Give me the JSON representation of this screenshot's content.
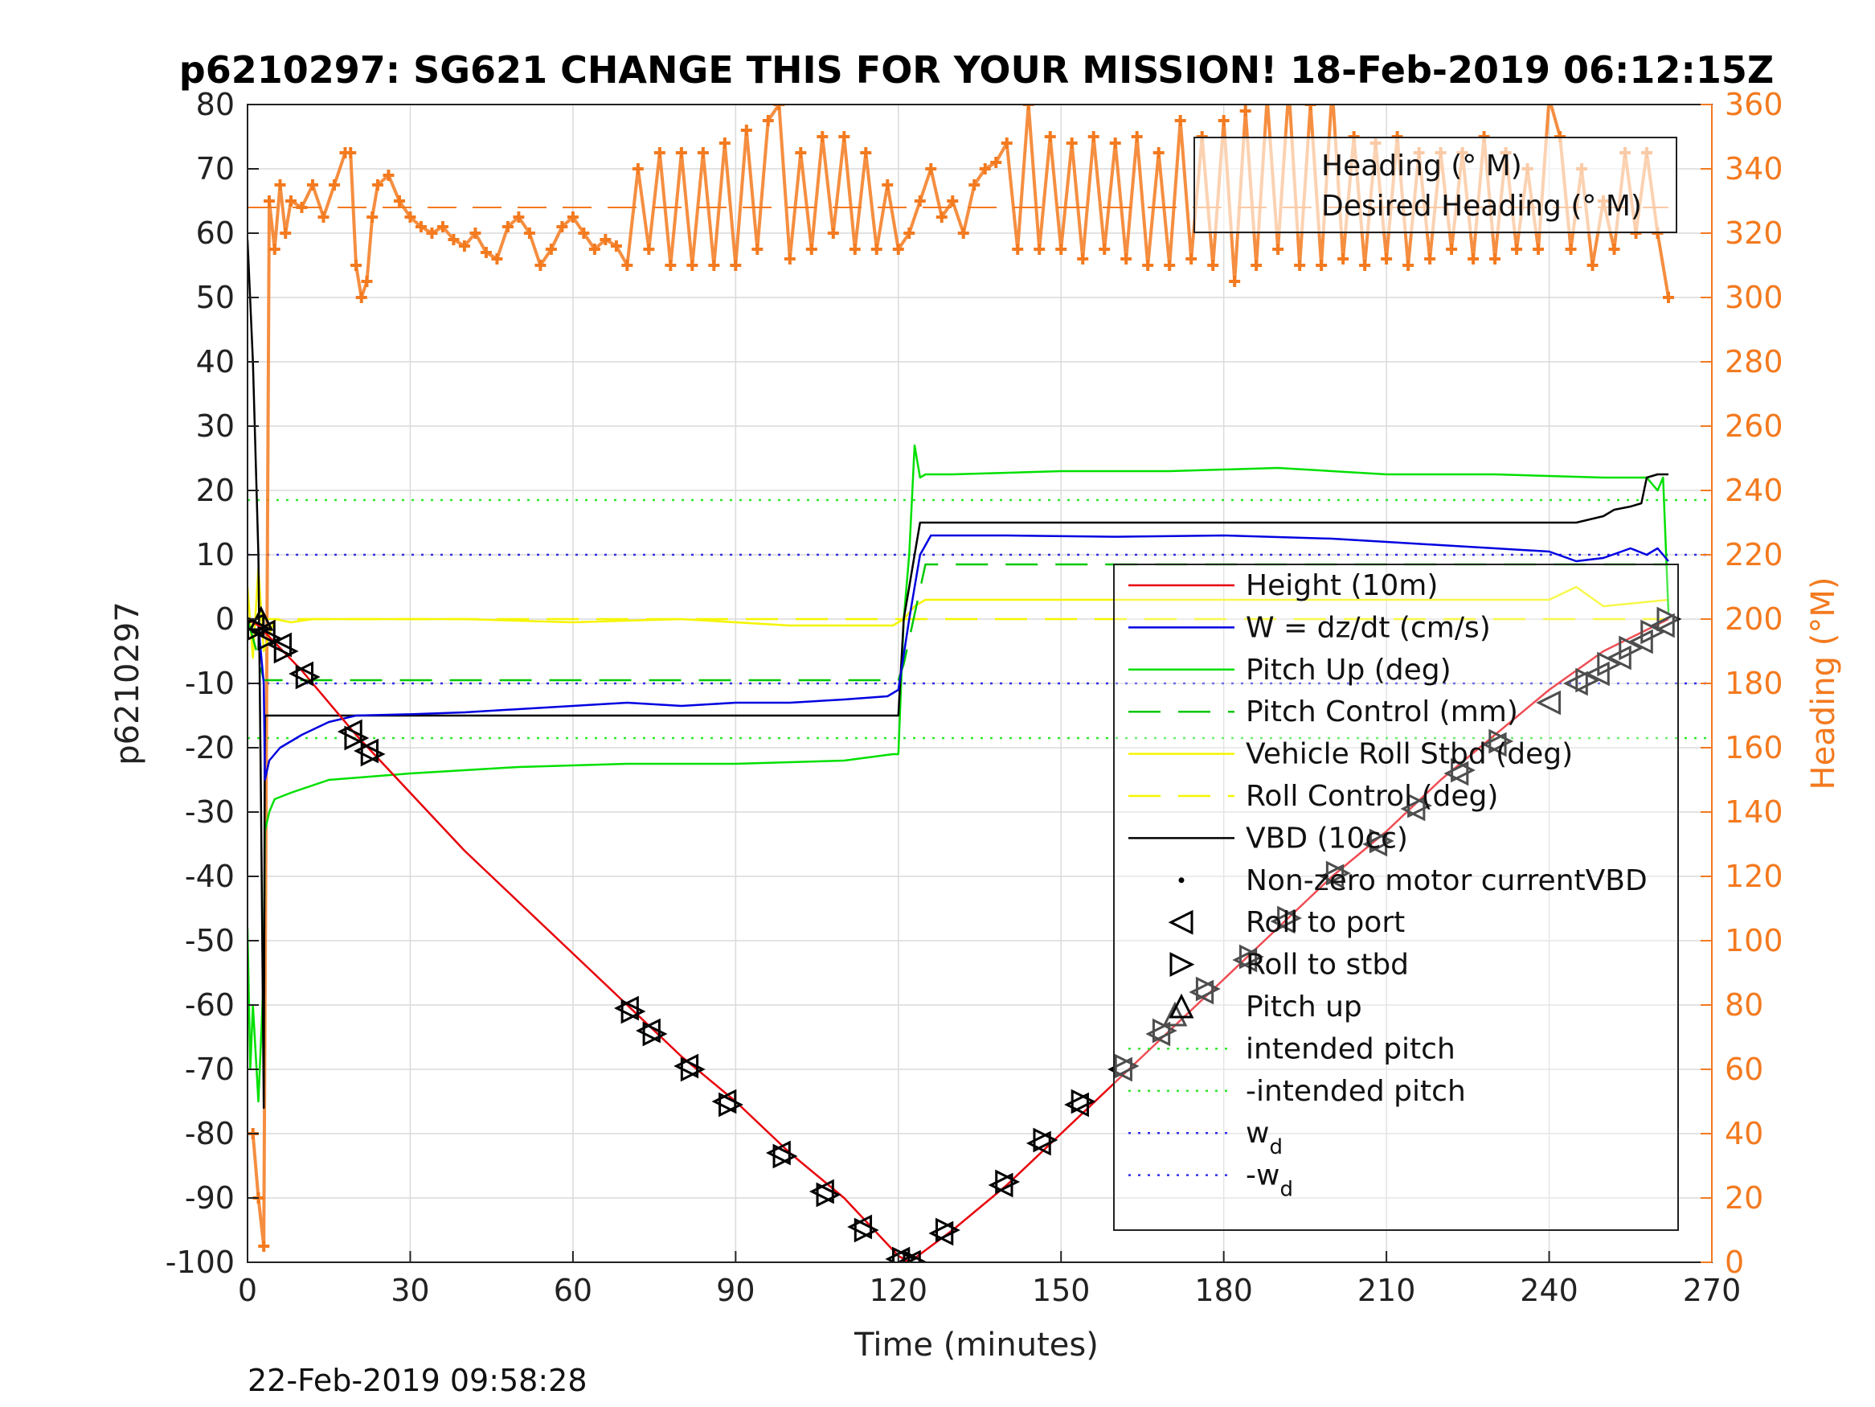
{
  "colors": {
    "height": "#E8000B",
    "w": "#0000E0",
    "pitch": "#00E000",
    "pitch_control": "#00C800",
    "roll": "#F5F500",
    "vbd": "#000000",
    "heading": "#F37A1F",
    "intended": "#2EE82E",
    "wd": "#2E2EE8",
    "grid": "#DADADA"
  },
  "chart_data": {
    "type": "line",
    "title": "p6210297: SG621 CHANGE THIS FOR YOUR MISSION! 18-Feb-2019 06:12:15Z",
    "xlabel": "Time (minutes)",
    "ylabel": "p6210297",
    "ylabel_right": "Heading (°M)",
    "xlim": [
      0,
      270
    ],
    "ylim": [
      -100,
      80
    ],
    "ylim_right": [
      0,
      360
    ],
    "xticks": [
      "0",
      "30",
      "60",
      "90",
      "120",
      "150",
      "180",
      "210",
      "240",
      "270"
    ],
    "yticks": [
      "-100",
      "-90",
      "-80",
      "-70",
      "-60",
      "-50",
      "-40",
      "-30",
      "-20",
      "-10",
      "0",
      "10",
      "20",
      "30",
      "40",
      "50",
      "60",
      "70",
      "80"
    ],
    "yticks_right": [
      "0",
      "20",
      "40",
      "60",
      "80",
      "100",
      "120",
      "140",
      "160",
      "180",
      "200",
      "220",
      "240",
      "260",
      "280",
      "300",
      "320",
      "340",
      "360"
    ],
    "grid": true,
    "footer": "22-Feb-2019 09:58:28",
    "legend_heading": {
      "placement": "top-right",
      "entries": [
        "Heading (° M)",
        "Desired Heading (° M)"
      ]
    },
    "legend_main": {
      "placement": "right",
      "entries": [
        {
          "label": "Height (10m)",
          "style": "line",
          "color": "height"
        },
        {
          "label": "W = dz/dt (cm/s)",
          "style": "line",
          "color": "w"
        },
        {
          "label": "Pitch Up (deg)",
          "style": "line",
          "color": "pitch"
        },
        {
          "label": "Pitch Control (mm)",
          "style": "dash",
          "color": "pitch_control"
        },
        {
          "label": "Vehicle Roll Stbd (deg)",
          "style": "line",
          "color": "roll"
        },
        {
          "label": "Roll Control (deg)",
          "style": "dash",
          "color": "roll"
        },
        {
          "label": "VBD (10cc)",
          "style": "line",
          "color": "vbd"
        },
        {
          "label": "Non-zero motor currentVBD",
          "style": "dot",
          "color": "vbd"
        },
        {
          "label": "Roll to port",
          "style": "tri-left",
          "color": "vbd"
        },
        {
          "label": "Roll to stbd",
          "style": "tri-right",
          "color": "vbd"
        },
        {
          "label": "Pitch up",
          "style": "tri-up",
          "color": "vbd"
        },
        {
          "label": "intended pitch",
          "style": "dotted",
          "color": "intended"
        },
        {
          "label": "-intended pitch",
          "style": "dotted",
          "color": "intended"
        },
        {
          "label": "w",
          "sub": "d",
          "style": "dotted",
          "color": "wd"
        },
        {
          "label": "-w",
          "sub": "d",
          "style": "dotted",
          "color": "wd"
        }
      ]
    },
    "reference_lines": {
      "intended_pitch": 18.5,
      "neg_intended_pitch": -18.5,
      "w_d": 10,
      "neg_w_d": -10
    },
    "series": [
      {
        "name": "Height (10m)",
        "color": "height",
        "x": [
          0,
          2,
          10,
          20,
          30,
          40,
          50,
          60,
          70,
          80,
          90,
          100,
          110,
          120,
          122,
          130,
          140,
          150,
          160,
          170,
          180,
          190,
          200,
          210,
          220,
          230,
          240,
          250,
          262
        ],
        "y": [
          0,
          -1,
          -8,
          -18,
          -27,
          -36,
          -44,
          -52,
          -60,
          -68,
          -75,
          -83,
          -90,
          -99,
          -100,
          -95,
          -88,
          -80,
          -72,
          -64,
          -56,
          -48,
          -40,
          -33,
          -25,
          -18,
          -11,
          -5,
          0
        ]
      },
      {
        "name": "W = dz/dt (cm/s)",
        "color": "w",
        "x": [
          0,
          1,
          2,
          3,
          3.2,
          4,
          6,
          10,
          15,
          20,
          30,
          40,
          50,
          60,
          70,
          80,
          90,
          100,
          110,
          118,
          120,
          122,
          124,
          126,
          130,
          140,
          160,
          180,
          200,
          210,
          220,
          230,
          240,
          245,
          250,
          255,
          258,
          260,
          262
        ],
        "y": [
          0,
          0,
          -1,
          -10,
          -25,
          -22,
          -20,
          -18,
          -16,
          -15,
          -14.8,
          -14.5,
          -14,
          -13.5,
          -13,
          -13.5,
          -13,
          -13,
          -12.5,
          -12,
          -11,
          0,
          10,
          13,
          13,
          13,
          12.8,
          13,
          12.5,
          12,
          11.5,
          11,
          10.5,
          9,
          9.5,
          11,
          10,
          11,
          9
        ]
      },
      {
        "name": "Pitch Up (deg)",
        "color": "pitch",
        "x": [
          0,
          0.5,
          1,
          2,
          2.5,
          3,
          3.2,
          4,
          5,
          8,
          15,
          30,
          50,
          70,
          90,
          110,
          119,
          120,
          121,
          122,
          123,
          124,
          125,
          130,
          150,
          170,
          190,
          210,
          230,
          250,
          258,
          260,
          261,
          262
        ],
        "y": [
          -48,
          -70,
          -60,
          -75,
          -65,
          -55,
          -33,
          -30,
          -28,
          -27,
          -25,
          -24,
          -23,
          -22.5,
          -22.5,
          -22,
          -21,
          -21,
          0,
          10,
          27,
          22,
          22.5,
          22.5,
          23,
          23,
          23.5,
          22.5,
          22.5,
          22,
          22,
          20,
          22,
          1
        ]
      },
      {
        "name": "Pitch Control (mm)",
        "color": "pitch_control",
        "x": [
          0,
          2,
          3,
          120,
          121,
          125,
          262
        ],
        "y": [
          0,
          -6,
          -9.5,
          -9.5,
          -7,
          8.5,
          8.5
        ]
      },
      {
        "name": "Vehicle Roll Stbd (deg)",
        "color": "roll",
        "x": [
          0,
          1,
          2,
          3,
          5,
          8,
          12,
          20,
          40,
          60,
          80,
          100,
          119,
          121,
          123,
          125,
          140,
          160,
          180,
          200,
          220,
          240,
          245,
          250,
          262
        ],
        "y": [
          5,
          -6,
          8,
          -5,
          0,
          -0.5,
          0,
          0,
          0,
          -0.5,
          0,
          -1,
          -1,
          0,
          2,
          3,
          3,
          3,
          3,
          3,
          3,
          3,
          5,
          2,
          3
        ]
      },
      {
        "name": "Roll Control (deg)",
        "color": "roll",
        "x": [
          0,
          3,
          121,
          124,
          262
        ],
        "y": [
          0,
          0,
          0,
          0,
          0
        ]
      },
      {
        "name": "VBD (10cc)",
        "color": "vbd",
        "x": [
          0,
          1,
          2,
          2.5,
          3,
          3.2,
          120,
          121,
          122,
          123,
          124,
          245,
          250,
          252,
          255,
          257,
          258,
          260,
          262
        ],
        "y": [
          59,
          40,
          10,
          -30,
          -76,
          -15,
          -15,
          0,
          5,
          10,
          15,
          15,
          16,
          17,
          17.5,
          18,
          22,
          22.5,
          22.5
        ]
      },
      {
        "name": "Heading (° M)",
        "color": "heading",
        "axis": "right",
        "x": [
          1,
          2,
          3,
          4,
          5,
          6,
          7,
          8,
          10,
          12,
          14,
          16,
          18,
          19,
          20,
          21,
          22,
          23,
          24,
          26,
          28,
          30,
          32,
          34,
          36,
          38,
          40,
          42,
          44,
          46,
          48,
          50,
          52,
          54,
          56,
          58,
          60,
          62,
          64,
          66,
          68,
          70,
          72,
          74,
          76,
          78,
          80,
          82,
          84,
          86,
          88,
          90,
          92,
          94,
          96,
          98,
          100,
          102,
          104,
          106,
          108,
          110,
          112,
          114,
          116,
          118,
          120,
          122,
          124,
          126,
          128,
          130,
          132,
          134,
          136,
          138,
          140,
          142,
          144,
          146,
          148,
          150,
          152,
          154,
          156,
          158,
          160,
          162,
          164,
          166,
          168,
          170,
          172,
          174,
          176,
          178,
          180,
          182,
          184,
          186,
          188,
          190,
          192,
          194,
          196,
          198,
          200,
          202,
          204,
          206,
          208,
          210,
          212,
          214,
          216,
          218,
          220,
          222,
          224,
          226,
          228,
          230,
          232,
          234,
          236,
          238,
          240,
          242,
          244,
          246,
          248,
          250,
          252,
          254,
          256,
          258,
          260,
          262
        ],
        "y": [
          40,
          20,
          5,
          330,
          315,
          335,
          320,
          330,
          328,
          335,
          325,
          335,
          345,
          345,
          310,
          300,
          305,
          325,
          335,
          338,
          330,
          325,
          322,
          320,
          322,
          318,
          316,
          320,
          314,
          312,
          322,
          325,
          320,
          310,
          315,
          322,
          325,
          320,
          315,
          318,
          316,
          310,
          340,
          315,
          345,
          310,
          345,
          310,
          345,
          310,
          348,
          310,
          352,
          315,
          355,
          360,
          312,
          345,
          315,
          350,
          320,
          350,
          315,
          345,
          315,
          335,
          315,
          320,
          330,
          340,
          325,
          330,
          320,
          335,
          340,
          342,
          348,
          315,
          360,
          315,
          350,
          315,
          348,
          312,
          350,
          315,
          348,
          312,
          350,
          310,
          345,
          310,
          355,
          312,
          350,
          310,
          355,
          305,
          358,
          310,
          362,
          315,
          365,
          310,
          360,
          310,
          365,
          312,
          350,
          310,
          348,
          312,
          350,
          310,
          345,
          312,
          345,
          315,
          345,
          312,
          350,
          312,
          345,
          315,
          340,
          315,
          362,
          350,
          315,
          340,
          310,
          330,
          315,
          345,
          320,
          345,
          320,
          300
        ]
      },
      {
        "name": "Desired Heading (° M)",
        "color": "heading",
        "axis": "right",
        "x": [
          0,
          262
        ],
        "y": [
          328,
          328
        ]
      }
    ],
    "markers_roll_port": [
      [
        1,
        -1
      ],
      [
        3,
        -2
      ],
      [
        6,
        -4
      ],
      [
        10,
        -8.5
      ],
      [
        19,
        -17.5
      ],
      [
        22,
        -20.5
      ],
      [
        70,
        -60.5
      ],
      [
        74,
        -64
      ],
      [
        81,
        -69.5
      ],
      [
        88,
        -75
      ],
      [
        98,
        -83
      ],
      [
        106,
        -89
      ],
      [
        113,
        -94.5
      ],
      [
        120,
        -99.5
      ],
      [
        122,
        -100
      ],
      [
        128,
        -95.5
      ],
      [
        139,
        -88
      ],
      [
        146,
        -81.5
      ],
      [
        153,
        -75.5
      ],
      [
        161,
        -70
      ],
      [
        168,
        -64.5
      ],
      [
        176,
        -58
      ],
      [
        184,
        -53
      ],
      [
        191,
        -47
      ],
      [
        200,
        -40
      ],
      [
        208,
        -35
      ],
      [
        215,
        -29.5
      ],
      [
        223,
        -24
      ],
      [
        230,
        -19.5
      ],
      [
        240,
        -13
      ],
      [
        245,
        -10
      ],
      [
        249,
        -8.5
      ],
      [
        253,
        -6
      ],
      [
        257,
        -3.5
      ],
      [
        261,
        -1
      ]
    ],
    "markers_roll_stbd": [
      [
        2,
        -1.5
      ],
      [
        4,
        -3
      ],
      [
        7,
        -5
      ],
      [
        11,
        -9
      ],
      [
        20,
        -18.5
      ],
      [
        23,
        -21
      ],
      [
        71,
        -61
      ],
      [
        75,
        -64.5
      ],
      [
        82,
        -70
      ],
      [
        89,
        -75.5
      ],
      [
        99,
        -83.5
      ],
      [
        107,
        -89.5
      ],
      [
        114,
        -95
      ],
      [
        121,
        -99.5
      ],
      [
        123,
        -100
      ],
      [
        129,
        -95
      ],
      [
        140,
        -87.5
      ],
      [
        147,
        -81
      ],
      [
        154,
        -75
      ],
      [
        162,
        -69.5
      ],
      [
        169,
        -64
      ],
      [
        177,
        -57.5
      ],
      [
        185,
        -52.5
      ],
      [
        192,
        -46.5
      ],
      [
        201,
        -39.5
      ],
      [
        209,
        -34.5
      ],
      [
        216,
        -29
      ],
      [
        224,
        -23.5
      ],
      [
        231,
        -19
      ],
      [
        247,
        -9.5
      ],
      [
        251,
        -7
      ],
      [
        255,
        -4.5
      ],
      [
        259,
        -2
      ],
      [
        262,
        0
      ]
    ],
    "markers_pitch_up": [
      [
        2.5,
        0
      ],
      [
        171,
        -61.5
      ]
    ]
  }
}
